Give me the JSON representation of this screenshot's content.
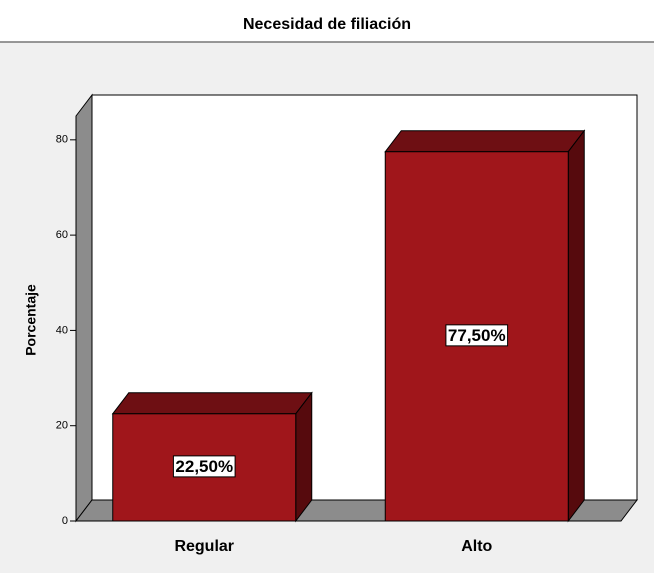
{
  "chart_data": {
    "type": "bar3d",
    "title": "Necesidad de filiación",
    "y_label": "Porcentaje",
    "categories": [
      "Regular",
      "Alto"
    ],
    "values": [
      22.5,
      77.5
    ],
    "value_labels": [
      "22,50%",
      "77,50%"
    ],
    "color": "#a0161b",
    "ylim": [
      0,
      85
    ],
    "yticks": [
      0,
      20,
      40,
      60,
      80
    ]
  }
}
